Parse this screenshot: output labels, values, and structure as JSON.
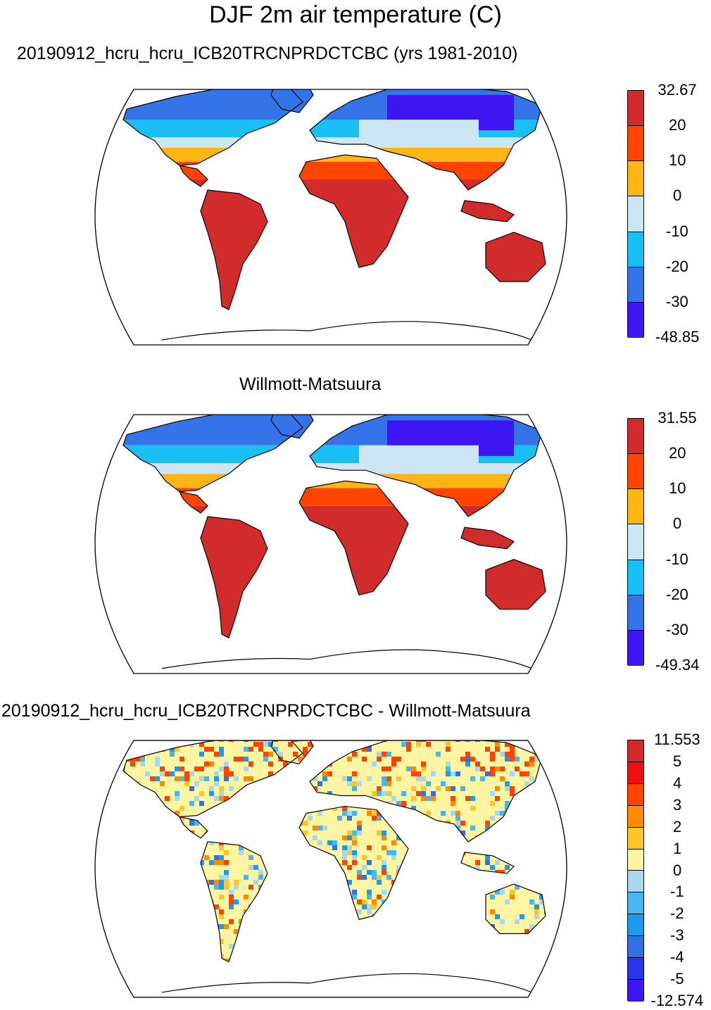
{
  "title": "DJF 2m air temperature (C)",
  "panels": [
    {
      "subtitle": "20190912_hcru_hcru_ICB20TRCNPRDCTCBC (yrs 1981-2010)",
      "colorbar": {
        "labels": [
          "32.67",
          "20",
          "10",
          "0",
          "-10",
          "-20",
          "-30",
          "-48.85"
        ],
        "colors": [
          "#d22b2b",
          "#ff4400",
          "#ffb612",
          "#cce6f5",
          "#1ac0f5",
          "#3474e8",
          "#3e16f4"
        ]
      }
    },
    {
      "subtitle": "Willmott-Matsuura",
      "colorbar": {
        "labels": [
          "31.55",
          "20",
          "10",
          "0",
          "-10",
          "-20",
          "-30",
          "-49.34"
        ],
        "colors": [
          "#d22b2b",
          "#ff4400",
          "#ffb612",
          "#cce6f5",
          "#1ac0f5",
          "#3474e8",
          "#3e16f4"
        ]
      }
    },
    {
      "subtitle": "20190912_hcru_hcru_ICB20TRCNPRDCTCBC - Willmott-Matsuura",
      "colorbar": {
        "labels": [
          "11.553",
          "5",
          "4",
          "3",
          "2",
          "1",
          "0",
          "-1",
          "-2",
          "-3",
          "-4",
          "-5",
          "-12.574"
        ],
        "colors": [
          "#d22b2b",
          "#f00f0f",
          "#ff4400",
          "#ff8c00",
          "#ffc52b",
          "#fff5a3",
          "#a8d8ee",
          "#46b8ef",
          "#1a9bee",
          "#3470e5",
          "#2a35f0",
          "#3e16f4"
        ]
      }
    }
  ]
}
